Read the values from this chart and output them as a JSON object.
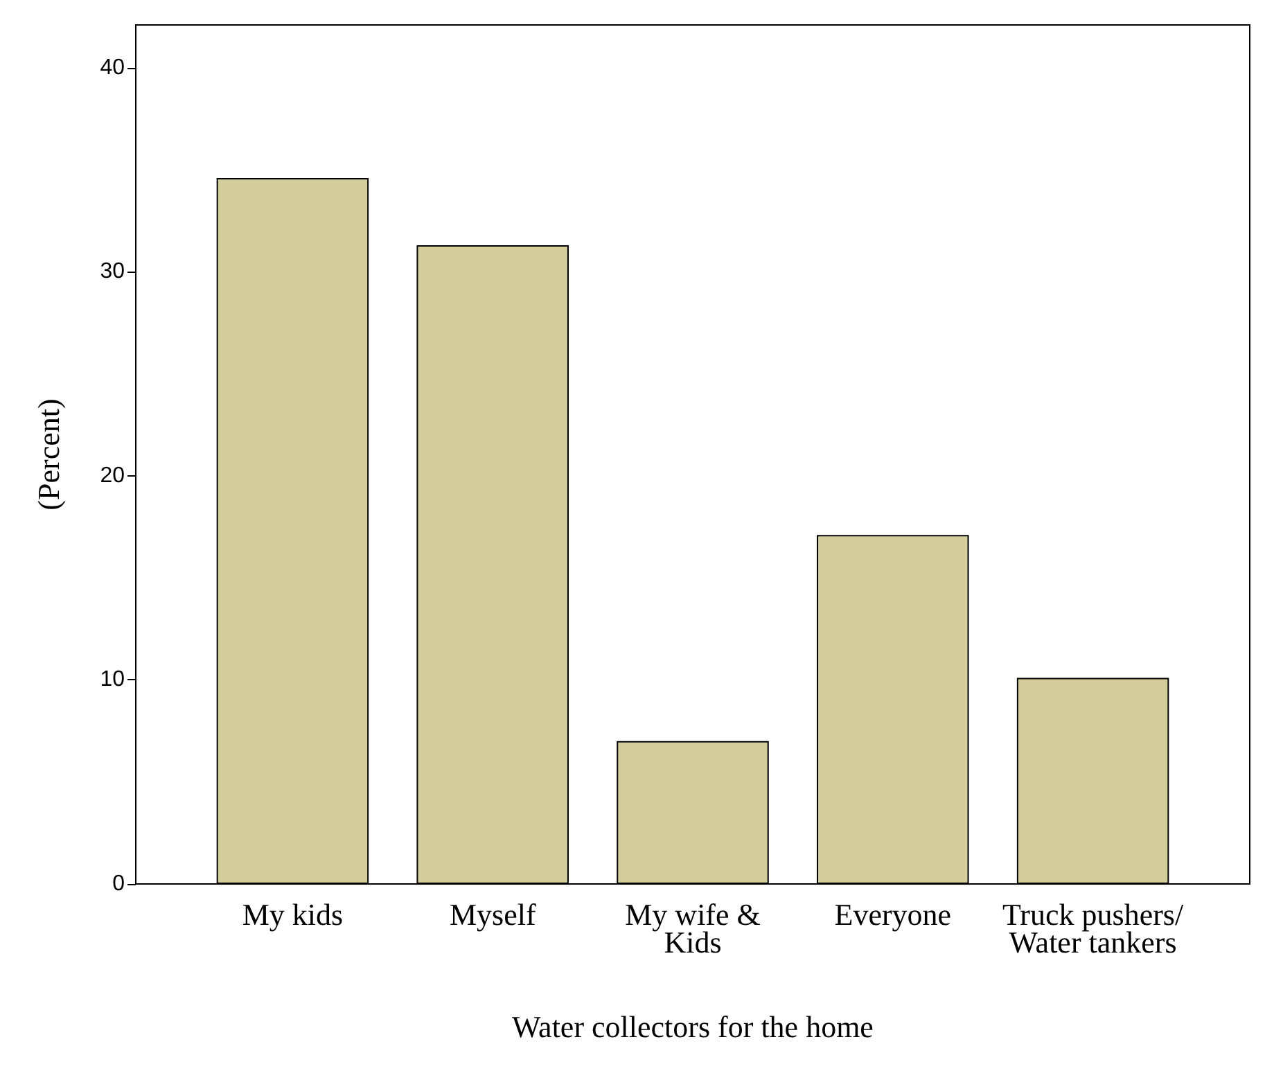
{
  "chart_data": {
    "type": "bar",
    "xlabel": "Water collectors for the home",
    "ylabel": "(Percent)",
    "categories": [
      "My kids",
      "Myself",
      "My wife &\nKids",
      "Everyone",
      "Truck pushers/\nWater tankers"
    ],
    "values": [
      34.6,
      31.3,
      7.0,
      17.1,
      10.1
    ],
    "color": "#d3ce9b",
    "ylim": [
      0,
      42.1
    ],
    "yticks": [
      0,
      10,
      20,
      30,
      40
    ],
    "grid": false
  }
}
